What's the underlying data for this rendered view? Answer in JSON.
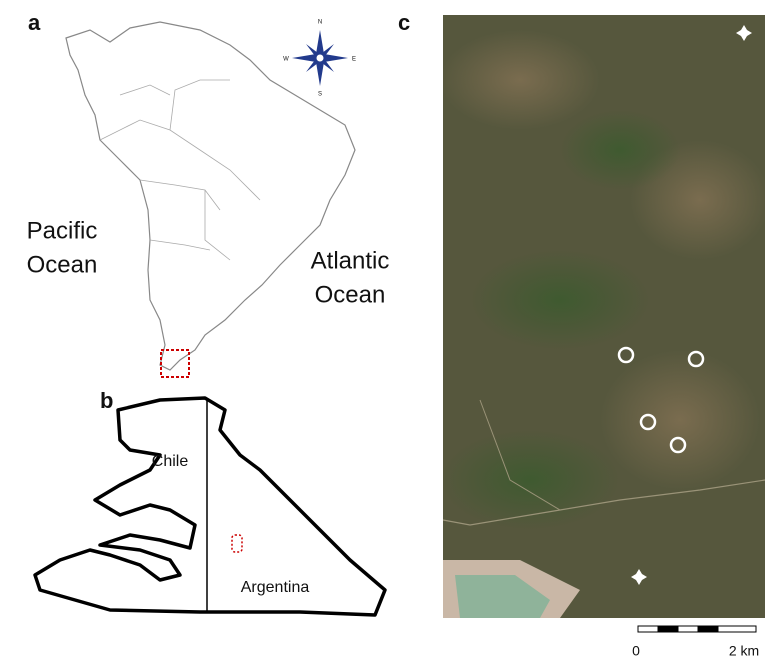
{
  "panels": {
    "a": {
      "label": "a",
      "pacific": [
        "Pacific",
        "Ocean"
      ],
      "atlantic": [
        "Atlantic",
        "Ocean"
      ],
      "compass": {
        "n": "N",
        "e": "E",
        "s": "S",
        "w": "W"
      }
    },
    "b": {
      "label": "b",
      "chile": "Chile",
      "argentina": "Argentina"
    },
    "c": {
      "label": "c",
      "scale": {
        "start": "0",
        "end": "2 km"
      }
    }
  }
}
